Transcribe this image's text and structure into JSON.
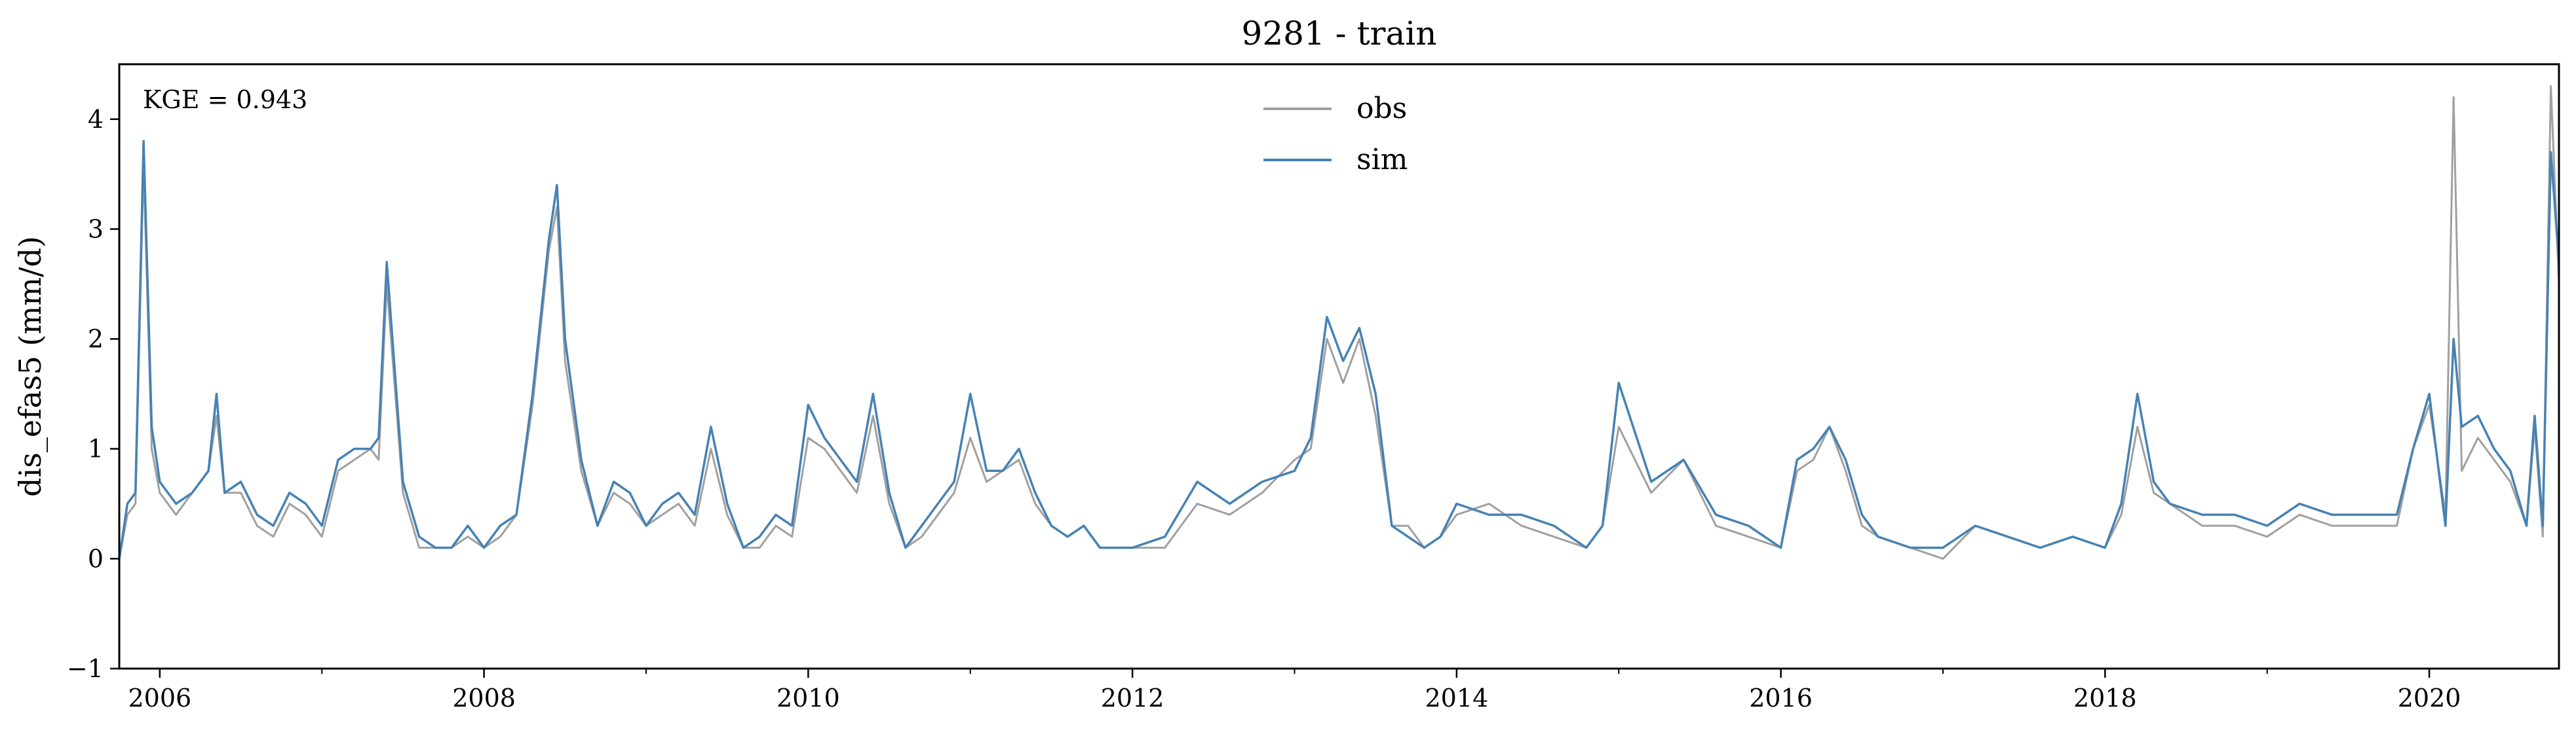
{
  "chart_data": {
    "type": "line",
    "title": "9281 - train",
    "xlabel": "",
    "ylabel": "dis_efas5 (mm/d)",
    "annotation": "KGE = 0.943",
    "xlim": [
      2005.75,
      2020.8
    ],
    "ylim": [
      -1,
      4.5
    ],
    "x_ticks": [
      2006,
      2008,
      2010,
      2012,
      2014,
      2016,
      2018,
      2020
    ],
    "x_tick_labels": [
      "2006",
      "2008",
      "2010",
      "2012",
      "2014",
      "2016",
      "2018",
      "2020"
    ],
    "x_minor_ticks": [
      2007,
      2009,
      2011,
      2013,
      2015,
      2017,
      2019
    ],
    "y_ticks": [
      -1,
      0,
      1,
      2,
      3,
      4
    ],
    "y_tick_labels": [
      "−1",
      "0",
      "1",
      "2",
      "3",
      "4"
    ],
    "grid": false,
    "legend_position": "top-center",
    "series": [
      {
        "name": "obs",
        "color": "#a0a0a0",
        "x": [
          2005.75,
          2005.8,
          2005.85,
          2005.9,
          2005.95,
          2006.0,
          2006.1,
          2006.2,
          2006.3,
          2006.35,
          2006.4,
          2006.5,
          2006.6,
          2006.7,
          2006.8,
          2006.9,
          2007.0,
          2007.1,
          2007.2,
          2007.3,
          2007.35,
          2007.4,
          2007.5,
          2007.6,
          2007.7,
          2007.8,
          2007.9,
          2008.0,
          2008.1,
          2008.2,
          2008.3,
          2008.4,
          2008.45,
          2008.5,
          2008.6,
          2008.7,
          2008.8,
          2008.9,
          2009.0,
          2009.1,
          2009.2,
          2009.3,
          2009.4,
          2009.5,
          2009.6,
          2009.7,
          2009.8,
          2009.9,
          2010.0,
          2010.1,
          2010.2,
          2010.3,
          2010.4,
          2010.5,
          2010.6,
          2010.7,
          2010.8,
          2010.9,
          2011.0,
          2011.1,
          2011.2,
          2011.3,
          2011.4,
          2011.5,
          2011.6,
          2011.7,
          2011.8,
          2011.9,
          2012.0,
          2012.2,
          2012.4,
          2012.6,
          2012.8,
          2013.0,
          2013.1,
          2013.2,
          2013.3,
          2013.4,
          2013.5,
          2013.6,
          2013.7,
          2013.8,
          2013.9,
          2014.0,
          2014.2,
          2014.4,
          2014.6,
          2014.8,
          2014.9,
          2015.0,
          2015.2,
          2015.4,
          2015.6,
          2015.8,
          2016.0,
          2016.1,
          2016.2,
          2016.3,
          2016.4,
          2016.5,
          2016.6,
          2016.8,
          2017.0,
          2017.2,
          2017.4,
          2017.6,
          2017.8,
          2018.0,
          2018.1,
          2018.2,
          2018.3,
          2018.4,
          2018.6,
          2018.8,
          2019.0,
          2019.2,
          2019.4,
          2019.6,
          2019.8,
          2019.9,
          2020.0,
          2020.1,
          2020.15,
          2020.2,
          2020.3,
          2020.4,
          2020.5,
          2020.6,
          2020.65,
          2020.7,
          2020.75,
          2020.8
        ],
        "values": [
          0.0,
          0.4,
          0.5,
          3.6,
          1.0,
          0.6,
          0.4,
          0.6,
          0.8,
          1.3,
          0.6,
          0.6,
          0.3,
          0.2,
          0.5,
          0.4,
          0.2,
          0.8,
          0.9,
          1.0,
          0.9,
          2.5,
          0.6,
          0.1,
          0.1,
          0.1,
          0.2,
          0.1,
          0.2,
          0.4,
          1.4,
          2.8,
          3.2,
          1.8,
          0.8,
          0.3,
          0.6,
          0.5,
          0.3,
          0.4,
          0.5,
          0.3,
          1.0,
          0.4,
          0.1,
          0.1,
          0.3,
          0.2,
          1.1,
          1.0,
          0.8,
          0.6,
          1.3,
          0.5,
          0.1,
          0.2,
          0.4,
          0.6,
          1.1,
          0.7,
          0.8,
          0.9,
          0.5,
          0.3,
          0.2,
          0.3,
          0.1,
          0.1,
          0.1,
          0.1,
          0.5,
          0.4,
          0.6,
          0.9,
          1.0,
          2.0,
          1.6,
          2.0,
          1.3,
          0.3,
          0.3,
          0.1,
          0.2,
          0.4,
          0.5,
          0.3,
          0.2,
          0.1,
          0.3,
          1.2,
          0.6,
          0.9,
          0.3,
          0.2,
          0.1,
          0.8,
          0.9,
          1.2,
          0.8,
          0.3,
          0.2,
          0.1,
          0.0,
          0.3,
          0.2,
          0.1,
          0.2,
          0.1,
          0.4,
          1.2,
          0.6,
          0.5,
          0.3,
          0.3,
          0.2,
          0.4,
          0.3,
          0.3,
          0.3,
          1.0,
          1.4,
          0.4,
          4.2,
          0.8,
          1.1,
          0.9,
          0.7,
          0.3,
          1.2,
          0.2,
          4.3,
          2.5
        ]
      },
      {
        "name": "sim",
        "color": "#4682b4",
        "x": [
          2005.75,
          2005.8,
          2005.85,
          2005.9,
          2005.95,
          2006.0,
          2006.1,
          2006.2,
          2006.3,
          2006.35,
          2006.4,
          2006.5,
          2006.6,
          2006.7,
          2006.8,
          2006.9,
          2007.0,
          2007.1,
          2007.2,
          2007.3,
          2007.35,
          2007.4,
          2007.5,
          2007.6,
          2007.7,
          2007.8,
          2007.9,
          2008.0,
          2008.1,
          2008.2,
          2008.3,
          2008.4,
          2008.45,
          2008.5,
          2008.6,
          2008.7,
          2008.8,
          2008.9,
          2009.0,
          2009.1,
          2009.2,
          2009.3,
          2009.4,
          2009.5,
          2009.6,
          2009.7,
          2009.8,
          2009.9,
          2010.0,
          2010.1,
          2010.2,
          2010.3,
          2010.4,
          2010.5,
          2010.6,
          2010.7,
          2010.8,
          2010.9,
          2011.0,
          2011.1,
          2011.2,
          2011.3,
          2011.4,
          2011.5,
          2011.6,
          2011.7,
          2011.8,
          2011.9,
          2012.0,
          2012.2,
          2012.4,
          2012.6,
          2012.8,
          2013.0,
          2013.1,
          2013.2,
          2013.3,
          2013.4,
          2013.5,
          2013.6,
          2013.7,
          2013.8,
          2013.9,
          2014.0,
          2014.2,
          2014.4,
          2014.6,
          2014.8,
          2014.9,
          2015.0,
          2015.2,
          2015.4,
          2015.6,
          2015.8,
          2016.0,
          2016.1,
          2016.2,
          2016.3,
          2016.4,
          2016.5,
          2016.6,
          2016.8,
          2017.0,
          2017.2,
          2017.4,
          2017.6,
          2017.8,
          2018.0,
          2018.1,
          2018.2,
          2018.3,
          2018.4,
          2018.6,
          2018.8,
          2019.0,
          2019.2,
          2019.4,
          2019.6,
          2019.8,
          2019.9,
          2020.0,
          2020.1,
          2020.15,
          2020.2,
          2020.3,
          2020.4,
          2020.5,
          2020.6,
          2020.65,
          2020.7,
          2020.75,
          2020.8
        ],
        "values": [
          0.0,
          0.5,
          0.6,
          3.8,
          1.2,
          0.7,
          0.5,
          0.6,
          0.8,
          1.5,
          0.6,
          0.7,
          0.4,
          0.3,
          0.6,
          0.5,
          0.3,
          0.9,
          1.0,
          1.0,
          1.1,
          2.7,
          0.7,
          0.2,
          0.1,
          0.1,
          0.3,
          0.1,
          0.3,
          0.4,
          1.5,
          2.9,
          3.4,
          2.0,
          0.9,
          0.3,
          0.7,
          0.6,
          0.3,
          0.5,
          0.6,
          0.4,
          1.2,
          0.5,
          0.1,
          0.2,
          0.4,
          0.3,
          1.4,
          1.1,
          0.9,
          0.7,
          1.5,
          0.6,
          0.1,
          0.3,
          0.5,
          0.7,
          1.5,
          0.8,
          0.8,
          1.0,
          0.6,
          0.3,
          0.2,
          0.3,
          0.1,
          0.1,
          0.1,
          0.2,
          0.7,
          0.5,
          0.7,
          0.8,
          1.1,
          2.2,
          1.8,
          2.1,
          1.5,
          0.3,
          0.2,
          0.1,
          0.2,
          0.5,
          0.4,
          0.4,
          0.3,
          0.1,
          0.3,
          1.6,
          0.7,
          0.9,
          0.4,
          0.3,
          0.1,
          0.9,
          1.0,
          1.2,
          0.9,
          0.4,
          0.2,
          0.1,
          0.1,
          0.3,
          0.2,
          0.1,
          0.2,
          0.1,
          0.5,
          1.5,
          0.7,
          0.5,
          0.4,
          0.4,
          0.3,
          0.5,
          0.4,
          0.4,
          0.4,
          1.0,
          1.5,
          0.3,
          2.0,
          1.2,
          1.3,
          1.0,
          0.8,
          0.3,
          1.3,
          0.3,
          3.7,
          2.7
        ]
      }
    ]
  }
}
